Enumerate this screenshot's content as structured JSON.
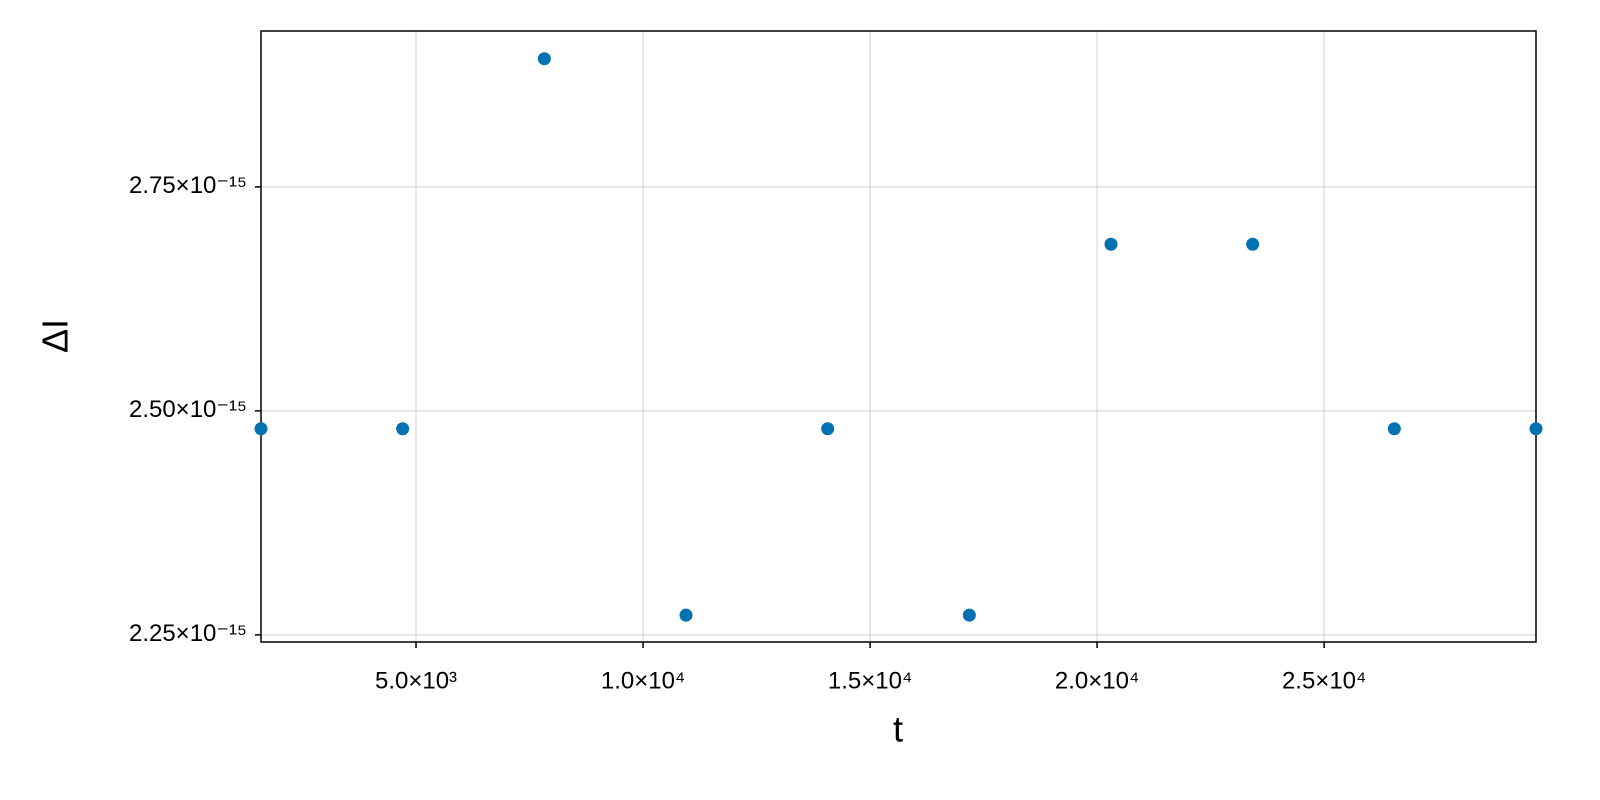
{
  "chart_data": {
    "type": "scatter",
    "x_label": "t",
    "y_label": "ΔI",
    "x": [
      1586,
      4706,
      7826,
      10946,
      14066,
      17186,
      20306,
      23426,
      26546,
      29666
    ],
    "series": [
      {
        "color": "#0072b2",
        "values": [
          2.48e-15,
          2.48e-15,
          2.893e-15,
          2.272e-15,
          2.48e-15,
          2.272e-15,
          2.686e-15,
          2.686e-15,
          2.48e-15,
          2.48e-15
        ]
      }
    ],
    "xlim": [
      1586,
      29666
    ],
    "ylim": [
      2.242e-15,
      2.924e-15
    ],
    "xticks": [
      {
        "value": 5000,
        "label": "5.0×10³"
      },
      {
        "value": 10000,
        "label": "1.0×10⁴"
      },
      {
        "value": 15000,
        "label": "1.5×10⁴"
      },
      {
        "value": 20000,
        "label": "2.0×10⁴"
      },
      {
        "value": 25000,
        "label": "2.5×10⁴"
      }
    ],
    "yticks": [
      {
        "value": 2.25e-15,
        "label": "2.25×10⁻¹⁵"
      },
      {
        "value": 2.5e-15,
        "label": "2.50×10⁻¹⁵"
      },
      {
        "value": 2.75e-15,
        "label": "2.75×10⁻¹⁵"
      }
    ],
    "grid": true
  }
}
